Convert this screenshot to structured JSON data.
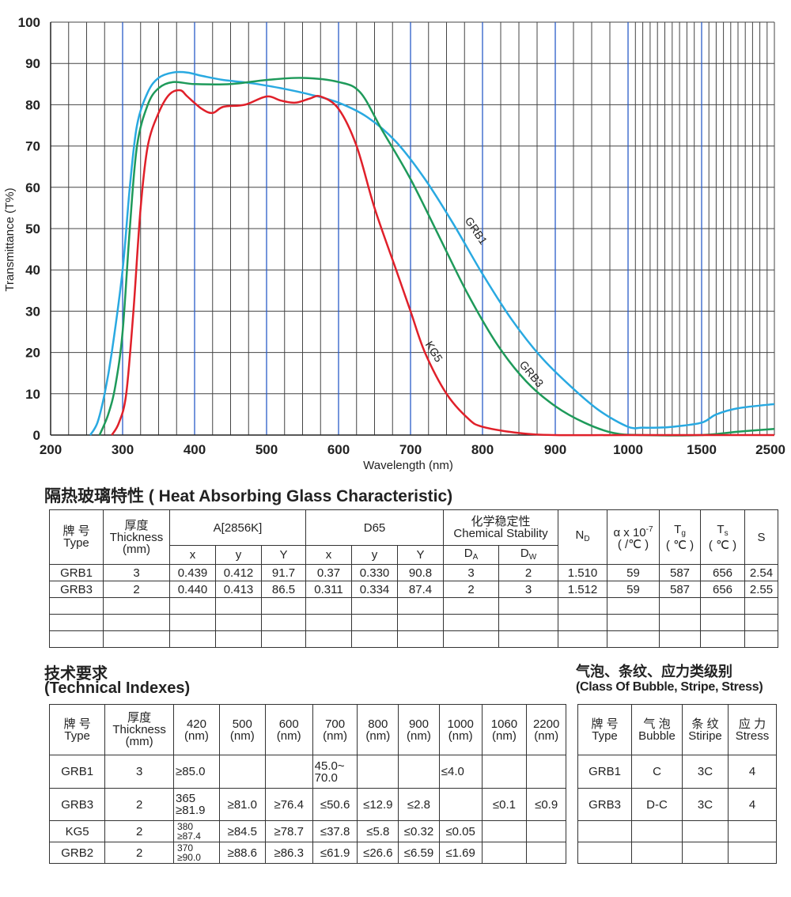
{
  "chart_data": {
    "type": "line",
    "xlabel": "Wavelength (nm)",
    "ylabel": "Transmittance (T%)",
    "x_ticks": [
      200,
      300,
      400,
      500,
      600,
      700,
      800,
      900,
      1000,
      1500,
      2500
    ],
    "y_ticks": [
      0,
      10,
      20,
      30,
      40,
      50,
      60,
      70,
      80,
      90,
      100
    ],
    "xlim": [
      200,
      2500
    ],
    "ylim": [
      0,
      100
    ],
    "x_scale": "broken: linear 200-1000 nm, compressed 1000-2500 nm",
    "grid": true,
    "series": [
      {
        "name": "GRB1",
        "color": "#29a9e1",
        "points": [
          [
            255,
            0
          ],
          [
            265,
            3
          ],
          [
            275,
            10
          ],
          [
            285,
            20
          ],
          [
            300,
            40
          ],
          [
            310,
            60
          ],
          [
            320,
            75
          ],
          [
            335,
            83
          ],
          [
            350,
            86.5
          ],
          [
            370,
            87.8
          ],
          [
            390,
            87.8
          ],
          [
            410,
            87
          ],
          [
            440,
            86
          ],
          [
            480,
            85.2
          ],
          [
            520,
            84
          ],
          [
            560,
            82.5
          ],
          [
            600,
            80.5
          ],
          [
            640,
            77
          ],
          [
            680,
            71
          ],
          [
            720,
            62
          ],
          [
            760,
            51
          ],
          [
            800,
            39
          ],
          [
            840,
            28
          ],
          [
            880,
            19
          ],
          [
            920,
            12
          ],
          [
            960,
            6
          ],
          [
            1000,
            2
          ],
          [
            1100,
            1.8
          ],
          [
            1200,
            1.8
          ],
          [
            1300,
            2
          ],
          [
            1500,
            3
          ],
          [
            1700,
            5
          ],
          [
            2000,
            6.5
          ],
          [
            2500,
            7.5
          ]
        ]
      },
      {
        "name": "GRB3",
        "color": "#1e9a5a",
        "points": [
          [
            268,
            0
          ],
          [
            280,
            5
          ],
          [
            290,
            12
          ],
          [
            300,
            25
          ],
          [
            310,
            50
          ],
          [
            320,
            70
          ],
          [
            335,
            80
          ],
          [
            350,
            84
          ],
          [
            370,
            85.5
          ],
          [
            400,
            85
          ],
          [
            450,
            85
          ],
          [
            500,
            86
          ],
          [
            550,
            86.5
          ],
          [
            600,
            85.5
          ],
          [
            630,
            83
          ],
          [
            660,
            74
          ],
          [
            700,
            62
          ],
          [
            740,
            48
          ],
          [
            780,
            34
          ],
          [
            820,
            22
          ],
          [
            860,
            13
          ],
          [
            900,
            7
          ],
          [
            940,
            3
          ],
          [
            980,
            0.5
          ],
          [
            1100,
            0
          ],
          [
            1500,
            0
          ],
          [
            2000,
            0.8
          ],
          [
            2500,
            1.5
          ]
        ]
      },
      {
        "name": "KG5",
        "color": "#e0202a",
        "points": [
          [
            285,
            0
          ],
          [
            295,
            3
          ],
          [
            305,
            10
          ],
          [
            315,
            30
          ],
          [
            325,
            55
          ],
          [
            335,
            70
          ],
          [
            350,
            78
          ],
          [
            365,
            82.5
          ],
          [
            380,
            83.5
          ],
          [
            390,
            82
          ],
          [
            410,
            79
          ],
          [
            425,
            78
          ],
          [
            440,
            79.5
          ],
          [
            470,
            80
          ],
          [
            500,
            82
          ],
          [
            520,
            81
          ],
          [
            540,
            80.5
          ],
          [
            560,
            81.5
          ],
          [
            575,
            82
          ],
          [
            600,
            79
          ],
          [
            625,
            70
          ],
          [
            650,
            55
          ],
          [
            680,
            40
          ],
          [
            700,
            30
          ],
          [
            720,
            20
          ],
          [
            750,
            10
          ],
          [
            780,
            4
          ],
          [
            800,
            2
          ],
          [
            850,
            0.5
          ],
          [
            900,
            0
          ],
          [
            1000,
            0
          ],
          [
            2500,
            0
          ]
        ]
      }
    ]
  },
  "tables": {
    "heat": {
      "title": "隔热玻璃特性 ( Heat Absorbing Glass Characteristic)",
      "h_type_cn": "牌  号",
      "h_type_en": "Type",
      "h_thick_cn": "厚度",
      "h_thick_en": "Thickness",
      "h_thick_unit": "(mm)",
      "h_a": "A[2856K]",
      "h_d65": "D65",
      "h_chem_cn": "化学稳定性",
      "h_chem_en": "Chemical Stability",
      "h_nd": "N",
      "h_nd_sub": "D",
      "h_alpha": "α x 10",
      "h_alpha_sup": "-7",
      "h_alpha_unit": "( /℃ )",
      "h_tg": "T",
      "h_tg_sub": "g",
      "h_tg_unit": "( ℃ )",
      "h_ts": "T",
      "h_ts_sub": "s",
      "h_ts_unit": "( ℃ )",
      "h_s": "S",
      "sub_x": "x",
      "sub_y": "y",
      "sub_Y": "Y",
      "sub_da": "D",
      "sub_da_sub": "A",
      "sub_dw": "D",
      "sub_dw_sub": "W",
      "rows": [
        [
          "GRB1",
          "3",
          "0.439",
          "0.412",
          "91.7",
          "0.37",
          "0.330",
          "90.8",
          "3",
          "2",
          "1.510",
          "59",
          "587",
          "656",
          "2.54"
        ],
        [
          "GRB3",
          "2",
          "0.440",
          "0.413",
          "86.5",
          "0.311",
          "0.334",
          "87.4",
          "2",
          "3",
          "1.512",
          "59",
          "587",
          "656",
          "2.55"
        ]
      ]
    },
    "tech": {
      "title_cn": "技术要求",
      "title_en": "(Technical Indexes)",
      "h_type_cn": "牌  号",
      "h_type_en": "Type",
      "h_thick_cn": "厚度",
      "h_thick_en": "Thickness",
      "h_thick_unit": "(mm)",
      "wavelengths": [
        "420",
        "500",
        "600",
        "700",
        "800",
        "900",
        "1000",
        "1060",
        "2200"
      ],
      "nm": "(nm)",
      "grb1": {
        "type": "GRB1",
        "thick": "3",
        "c420": "≥85.0",
        "c700a": "45.0~",
        "c700b": "70.0",
        "c1000": "≤4.0"
      },
      "grb3": {
        "type": "GRB3",
        "thick": "2",
        "c420a": "365",
        "c420b": "≥81.9",
        "c500": "≥81.0",
        "c600": "≥76.4",
        "c700": "≤50.6",
        "c800": "≤12.9",
        "c900": "≤2.8",
        "c1060": "≤0.1",
        "c2200": "≤0.9"
      },
      "kg5": {
        "type": "KG5",
        "thick": "2",
        "c420a": "380",
        "c420b": "≥87.4",
        "c500": "≥84.5",
        "c600": "≥78.7",
        "c700": "≤37.8",
        "c800": "≤5.8",
        "c900": "≤0.32",
        "c1000": "≤0.05"
      },
      "grb2": {
        "type": "GRB2",
        "thick": "2",
        "c420a": "370",
        "c420b": "≥90.0",
        "c500": "≥88.6",
        "c600": "≥86.3",
        "c700": "≤61.9",
        "c800": "≤26.6",
        "c900": "≤6.59",
        "c1000": "≤1.69"
      }
    },
    "bubble": {
      "title_cn": "气泡、条纹、应力类级别",
      "title_en": "(Class Of Bubble, Stripe, Stress)",
      "h_type_cn": "牌 号",
      "h_type_en": "Type",
      "h_bubble_cn": "气 泡",
      "h_bubble_en": "Bubble",
      "h_stripe_cn": "条 纹",
      "h_stripe_en": "Stiripe",
      "h_stress_cn": "应 力",
      "h_stress_en": "Stress",
      "rows": [
        [
          "GRB1",
          "C",
          "3C",
          "4"
        ],
        [
          "GRB3",
          "D-C",
          "3C",
          "4"
        ]
      ]
    }
  }
}
